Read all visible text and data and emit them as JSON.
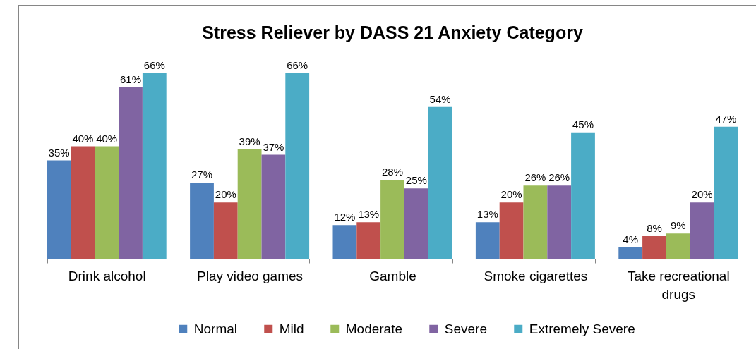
{
  "chart_data": {
    "type": "bar",
    "title": "Stress Reliever by DASS 21 Anxiety Category",
    "categories": [
      "Drink alcohol",
      "Play video games",
      "Gamble",
      "Smoke cigarettes",
      "Take recreational drugs"
    ],
    "series": [
      {
        "name": "Normal",
        "color": "#4f81bd",
        "values": [
          35,
          27,
          12,
          13,
          4
        ],
        "value_labels": [
          "35%",
          "27%",
          "12%",
          "13%",
          "4%"
        ]
      },
      {
        "name": "Mild",
        "color": "#c0504d",
        "values": [
          40,
          20,
          13,
          20,
          8
        ],
        "value_labels": [
          "40%",
          "20%",
          "13%",
          "20%",
          "8%"
        ]
      },
      {
        "name": "Moderate",
        "color": "#9bbb59",
        "values": [
          40,
          39,
          28,
          26,
          9
        ],
        "value_labels": [
          "40%",
          "39%",
          "28%",
          "26%",
          "9%"
        ]
      },
      {
        "name": "Severe",
        "color": "#8064a2",
        "values": [
          61,
          37,
          25,
          26,
          20
        ],
        "value_labels": [
          "61%",
          "37%",
          "25%",
          "26%",
          "20%"
        ]
      },
      {
        "name": "Extremely Severe",
        "color": "#4bacc6",
        "values": [
          66,
          66,
          54,
          45,
          47
        ],
        "value_labels": [
          "66%",
          "66%",
          "54%",
          "45%",
          "47%"
        ]
      }
    ],
    "legend": "bottom",
    "grid": false
  }
}
